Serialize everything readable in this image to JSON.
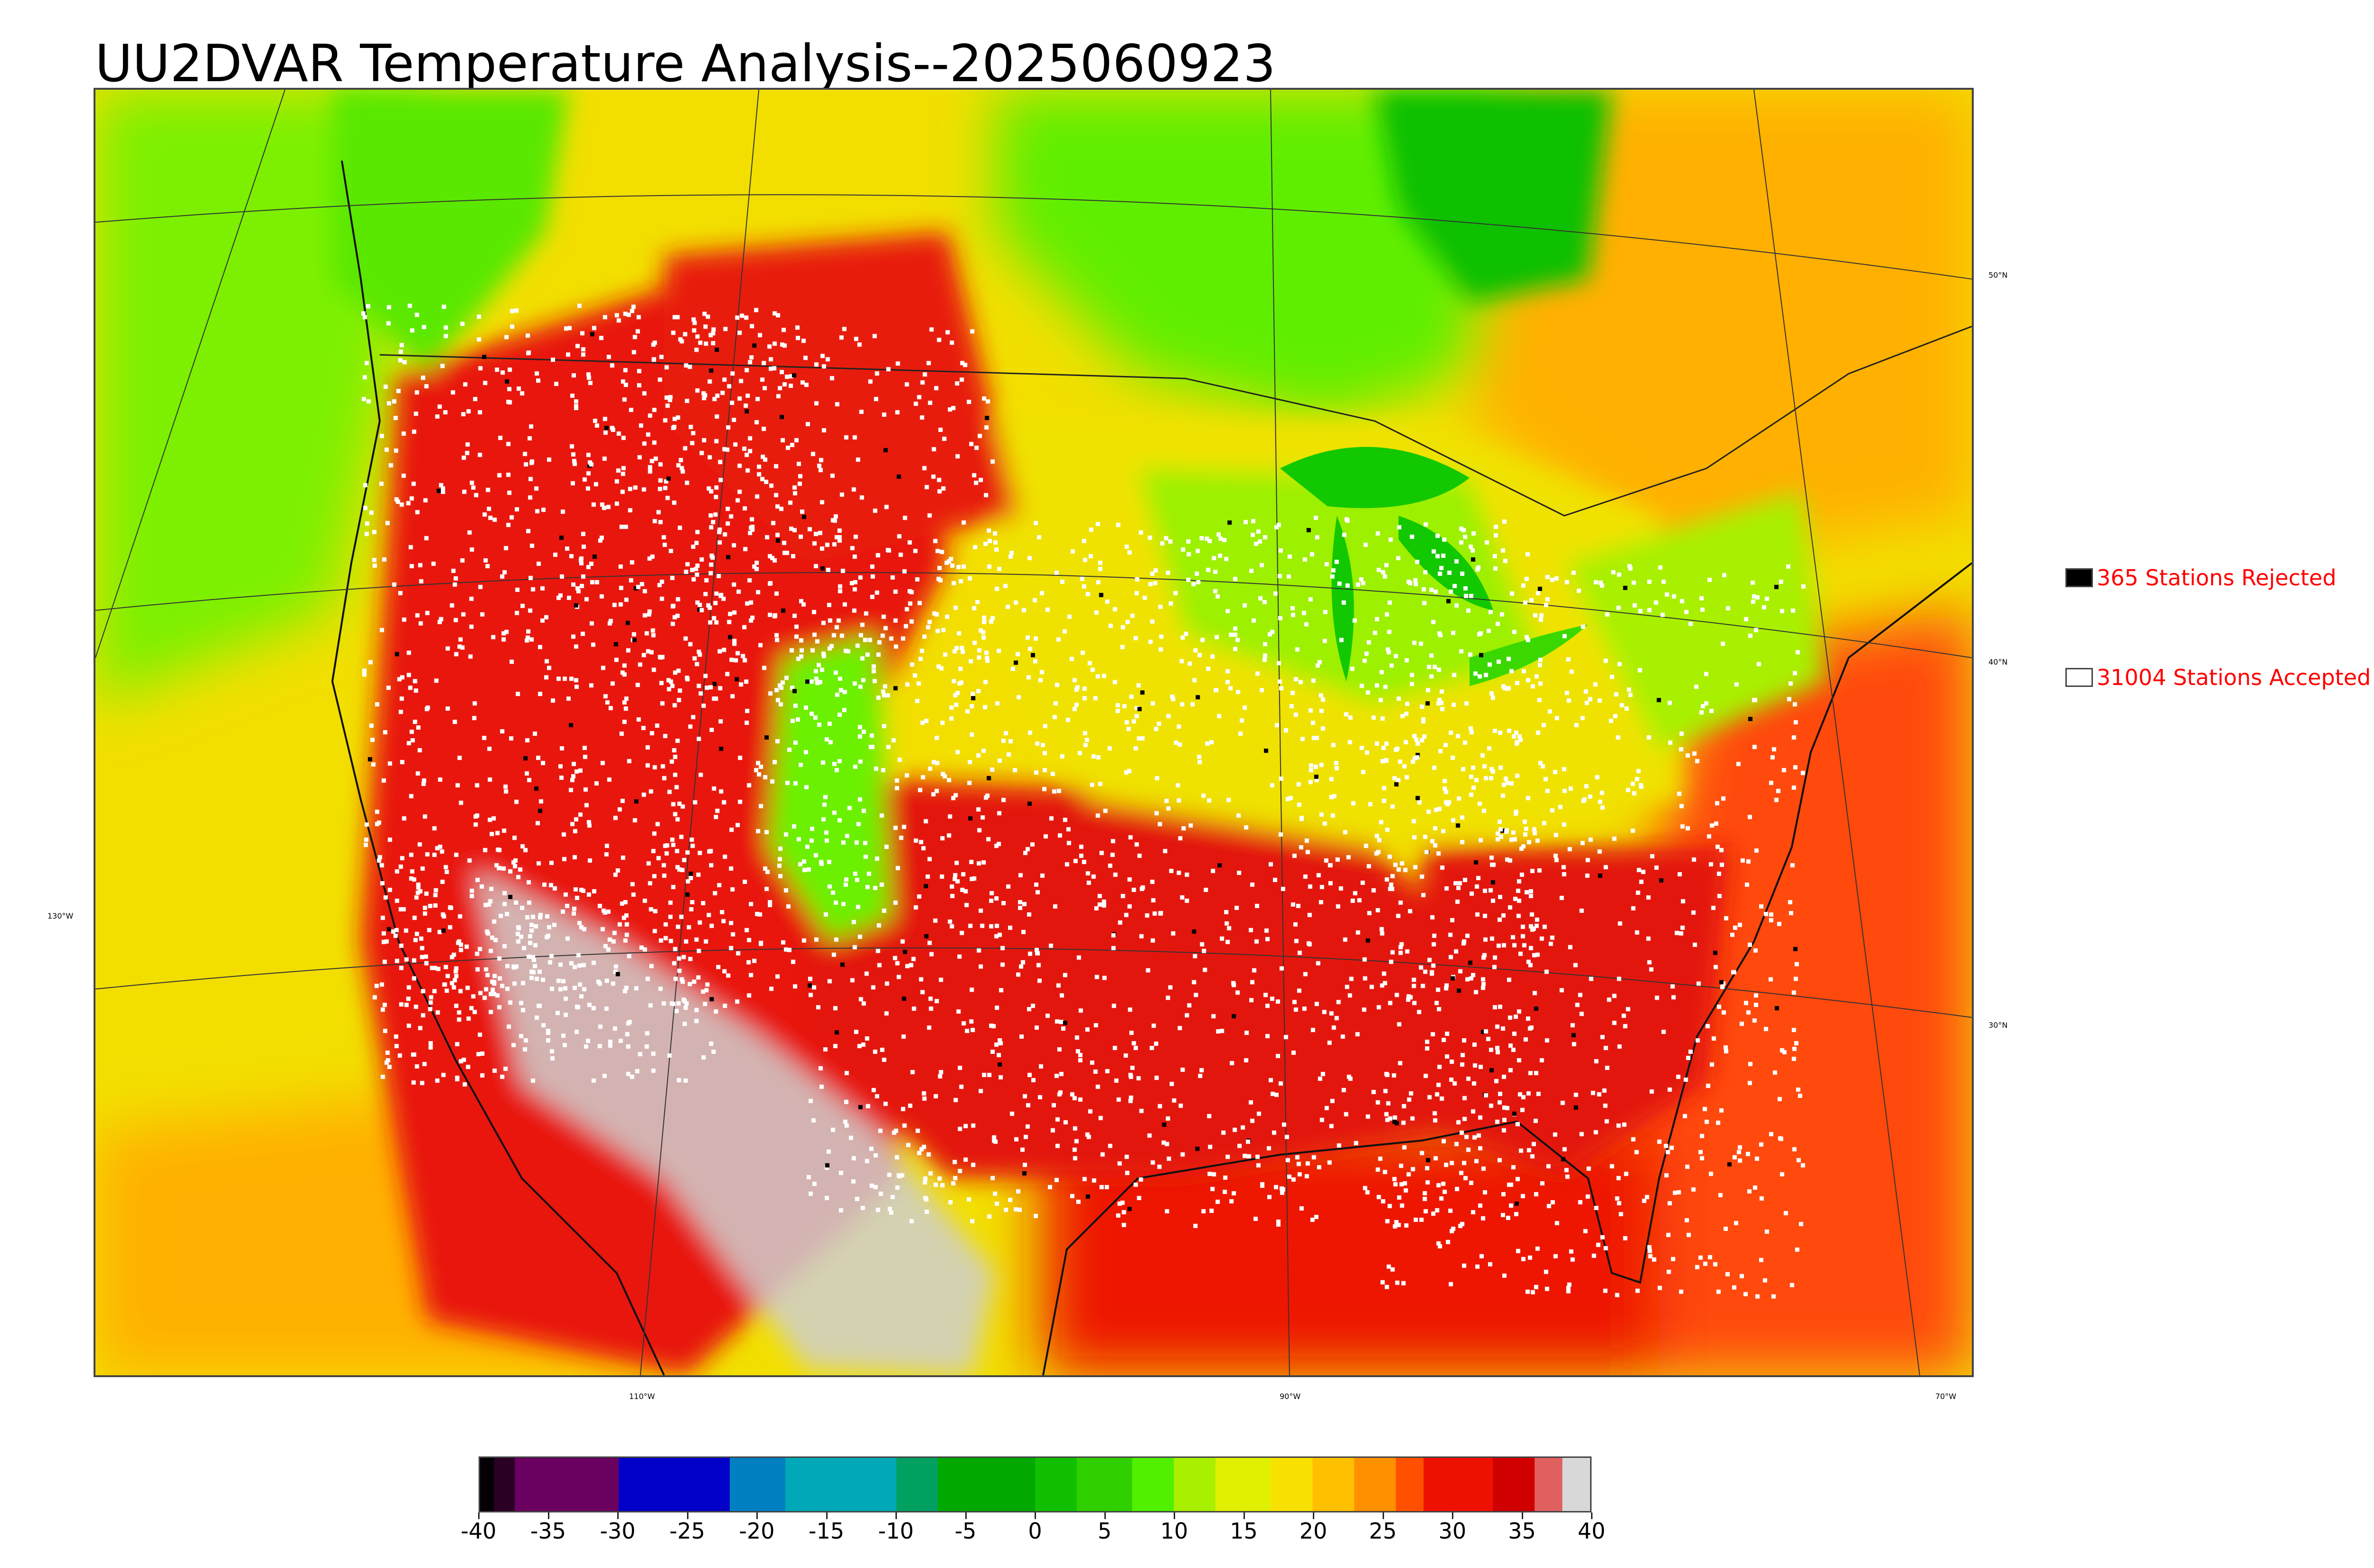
{
  "title": "UU2DVAR Temperature Analysis--2025060923",
  "map": {
    "lon_labels": [
      "110°W",
      "90°W",
      "70°W"
    ],
    "lat_labels": [
      "50°N",
      "40°N",
      "30°N"
    ],
    "left_label": "130°W",
    "colors": {
      "land_hot": "#e8140a",
      "land_very_hot": "#d0d0d0",
      "warm": "#ff9a00",
      "mild": "#f0e600",
      "cool": "#3cff00",
      "ocean_pacific": "#f5e000",
      "ocean_atlantic": "#ff4a10",
      "gulf": "#ee1500",
      "lake_green": "#12c800",
      "station_accepted": "#ffffff",
      "station_rejected": "#000000"
    }
  },
  "legend": {
    "rejected": {
      "label": "365 Stations Rejected",
      "count": 365,
      "color": "#000000"
    },
    "accepted": {
      "label": "31004 Stations Accepted",
      "count": 31004,
      "color": "#ffffff"
    }
  },
  "colorbar": {
    "min": -40,
    "max": 40,
    "ticks": [
      "-40",
      "-35",
      "-30",
      "-25",
      "-20",
      "-15",
      "-10",
      "-5",
      "0",
      "5",
      "10",
      "15",
      "20",
      "25",
      "30",
      "35",
      "40"
    ],
    "segments": [
      {
        "from": -40,
        "to": -39,
        "color": "#050005"
      },
      {
        "from": -39,
        "to": -37.5,
        "color": "#2a0025"
      },
      {
        "from": -37.5,
        "to": -30,
        "color": "#6a0060"
      },
      {
        "from": -30,
        "to": -22,
        "color": "#0000c8"
      },
      {
        "from": -22,
        "to": -18,
        "color": "#0080c0"
      },
      {
        "from": -18,
        "to": -10,
        "color": "#00a8b8"
      },
      {
        "from": -10,
        "to": -7,
        "color": "#00a060"
      },
      {
        "from": -7,
        "to": 0,
        "color": "#00a800"
      },
      {
        "from": 0,
        "to": 3,
        "color": "#10c000"
      },
      {
        "from": 3,
        "to": 7,
        "color": "#30d000"
      },
      {
        "from": 7,
        "to": 10,
        "color": "#50f000"
      },
      {
        "from": 10,
        "to": 13,
        "color": "#a8f000"
      },
      {
        "from": 13,
        "to": 17,
        "color": "#e0f000"
      },
      {
        "from": 17,
        "to": 20,
        "color": "#f8e000"
      },
      {
        "from": 20,
        "to": 23,
        "color": "#ffc000"
      },
      {
        "from": 23,
        "to": 26,
        "color": "#ff9000"
      },
      {
        "from": 26,
        "to": 28,
        "color": "#ff5000"
      },
      {
        "from": 28,
        "to": 33,
        "color": "#ee1000"
      },
      {
        "from": 33,
        "to": 36,
        "color": "#d00000"
      },
      {
        "from": 36,
        "to": 38,
        "color": "#e06060"
      },
      {
        "from": 38,
        "to": 40,
        "color": "#d8d8d8"
      }
    ]
  }
}
